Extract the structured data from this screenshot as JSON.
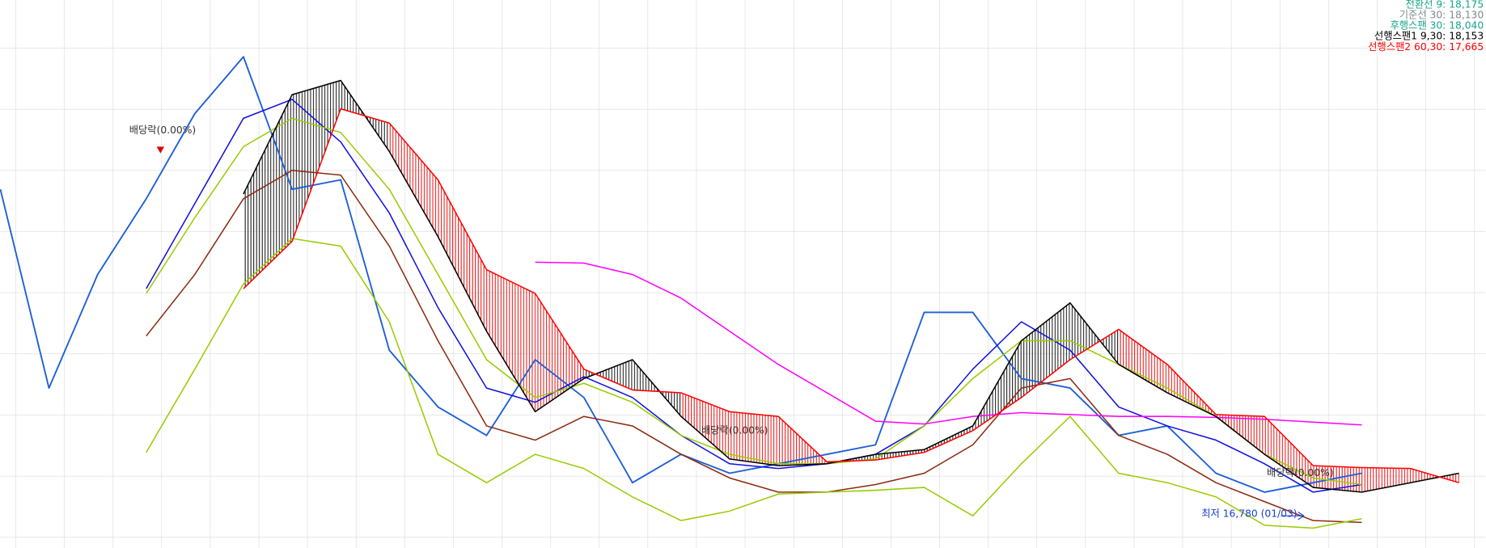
{
  "chart_data": {
    "type": "line",
    "categories": [
      null,
      null,
      null,
      null,
      null,
      null,
      null,
      null,
      null,
      null,
      null,
      null,
      null,
      null,
      null,
      null,
      null,
      null,
      null,
      null,
      null,
      null,
      null,
      null,
      null,
      null,
      null,
      null,
      null,
      null,
      null
    ],
    "ylim": [
      15600,
      33000
    ],
    "grid": true,
    "cloud": true,
    "legend_position": "top-right",
    "legend": [
      {
        "text": "전환선 9: 18,175",
        "color": "#1aa58c"
      },
      {
        "text": "기준선 30: 18,130",
        "color": "#7f8c8c"
      },
      {
        "text": "후행스팬 30: 18,040",
        "color": "#1aa58c"
      },
      {
        "text": "선행스팬1 9,30: 18,153",
        "color": "#000000"
      },
      {
        "text": "선행스팬2 60,30: 17,665",
        "color": "#ff0000"
      }
    ],
    "annotations": [
      {
        "text": "배당락(0.00%)",
        "color": "#333333"
      },
      {
        "text": "배당락(0.00%)",
        "color": "#333333"
      },
      {
        "text": "배당락(0.00%)",
        "color": "#333333"
      },
      {
        "text": "최저 16,780 (01/03)",
        "color": "#1a3fd0"
      }
    ],
    "series": [
      {
        "color": "#1e5fd6",
        "values": [
          27000,
          20700,
          24300,
          26700,
          29400,
          31200,
          27000,
          27300,
          21900,
          20100,
          19200,
          21600,
          20400,
          17700,
          18600,
          18000,
          18300,
          18600,
          18900,
          23100,
          23100,
          21000,
          20700,
          19200,
          19500,
          18000,
          17400,
          17700,
          18000,
          null,
          null
        ]
      },
      {
        "color": "#1010e0",
        "values": [
          null,
          null,
          null,
          23850,
          26550,
          29250,
          29850,
          28500,
          26250,
          23250,
          20700,
          20250,
          21060,
          20400,
          19200,
          18300,
          18150,
          18300,
          18600,
          19500,
          21300,
          22800,
          21900,
          20100,
          19500,
          19050,
          18300,
          17400,
          17640,
          null,
          null
        ]
      },
      {
        "color": "#8b2a10",
        "values": [
          null,
          null,
          null,
          22350,
          24300,
          26700,
          27600,
          27450,
          25200,
          22200,
          19500,
          19050,
          19800,
          19500,
          18600,
          17850,
          17400,
          17400,
          17640,
          18000,
          18900,
          20700,
          21000,
          19200,
          18600,
          17700,
          17100,
          16500,
          16440,
          null,
          null
        ]
      },
      {
        "color": "#99cc00",
        "values": [
          null,
          null,
          null,
          23700,
          26100,
          28350,
          29250,
          28800,
          27000,
          24300,
          21600,
          20400,
          20850,
          20250,
          19200,
          18600,
          18300,
          18300,
          18450,
          19500,
          21000,
          22200,
          22200,
          21450,
          20700,
          19800,
          18600,
          17850,
          17640,
          null,
          null
        ]
      },
      {
        "color": "#99cc00",
        "values": [
          null,
          null,
          null,
          18660,
          21300,
          24000,
          25440,
          25200,
          22800,
          18600,
          17700,
          18600,
          18150,
          17250,
          16500,
          16800,
          17340,
          17400,
          17460,
          17550,
          16650,
          18300,
          19800,
          18000,
          17700,
          17250,
          16350,
          16260,
          16560,
          null,
          null
        ]
      },
      {
        "color": "#ff00ff",
        "values": [
          null,
          null,
          null,
          null,
          null,
          null,
          null,
          null,
          null,
          null,
          null,
          24690,
          24660,
          24300,
          23550,
          22500,
          21450,
          20550,
          19650,
          19560,
          19800,
          19920,
          19860,
          19800,
          19800,
          19770,
          19710,
          19620,
          19530,
          null,
          null
        ]
      },
      {
        "color": "#000000",
        "values": [
          null,
          null,
          null,
          null,
          null,
          26850,
          30000,
          30450,
          28200,
          25500,
          22500,
          19950,
          21000,
          21600,
          19800,
          18450,
          18240,
          18300,
          18600,
          18750,
          19500,
          22200,
          23400,
          21450,
          20550,
          19800,
          18600,
          17550,
          17400,
          17700,
          18000
        ]
      },
      {
        "color": "#ff0000",
        "values": [
          null,
          null,
          null,
          null,
          null,
          23850,
          25350,
          29550,
          29100,
          27300,
          24450,
          23700,
          21300,
          20640,
          20550,
          19950,
          19800,
          18360,
          18420,
          18660,
          19350,
          20400,
          21600,
          22560,
          21450,
          19860,
          19800,
          18240,
          18180,
          18150,
          17700
        ]
      }
    ]
  }
}
